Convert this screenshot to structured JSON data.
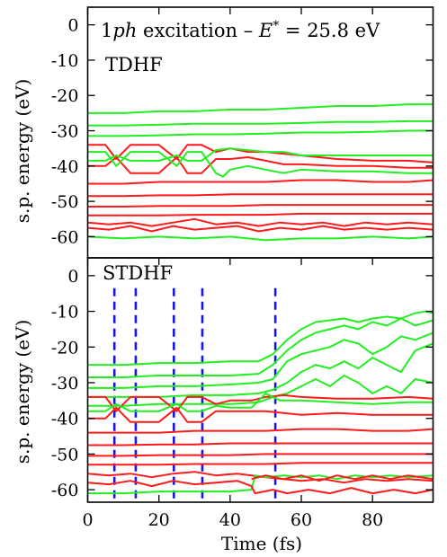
{
  "colors": {
    "occupied": "#ff1a1a",
    "unoccupied": "#22ee22",
    "markers": "#1515e6",
    "axis": "#000000"
  },
  "chart_data": [
    {
      "type": "line",
      "panel": "top",
      "title_math": "1ph excitation – E* = 25.8 eV",
      "label": "TDHF",
      "ylabel": "s.p. energy (eV)",
      "xlim": [
        0,
        97
      ],
      "ylim": [
        -66,
        5
      ],
      "yticks": [
        "0",
        "-10",
        "-20",
        "-30",
        "-40",
        "-50",
        "-60"
      ],
      "ytick_values": [
        0,
        -10,
        -20,
        -30,
        -40,
        -50,
        -60
      ],
      "grid": false,
      "series": [
        {
          "color": "green",
          "x": [
            0,
            10,
            20,
            30,
            40,
            50,
            60,
            70,
            80,
            90,
            97
          ],
          "y": [
            -25,
            -25,
            -24.5,
            -24.5,
            -24,
            -24,
            -23.5,
            -23,
            -23,
            -22.5,
            -22.5
          ]
        },
        {
          "color": "green",
          "x": [
            0,
            10,
            20,
            30,
            40,
            50,
            60,
            70,
            80,
            90,
            97
          ],
          "y": [
            -28.5,
            -28.5,
            -28.3,
            -28,
            -28,
            -28,
            -27.8,
            -27.5,
            -27.5,
            -27.3,
            -27.3
          ]
        },
        {
          "color": "green",
          "x": [
            0,
            10,
            20,
            30,
            40,
            50,
            60,
            70,
            80,
            90,
            97
          ],
          "y": [
            -31.5,
            -31.5,
            -31.3,
            -31,
            -31,
            -30.8,
            -30.5,
            -30.5,
            -30.3,
            -30,
            -30
          ]
        },
        {
          "color": "red",
          "x": [
            0,
            5,
            8,
            12,
            20,
            25,
            28,
            32,
            36,
            40,
            45,
            50,
            55,
            60,
            70,
            80,
            90,
            97
          ],
          "y": [
            -34,
            -34,
            -38,
            -34,
            -34,
            -38,
            -34,
            -34,
            -36,
            -35,
            -36,
            -36,
            -36.5,
            -37,
            -38,
            -38.5,
            -38.5,
            -39
          ]
        },
        {
          "color": "green",
          "x": [
            0,
            5,
            8,
            12,
            20,
            25,
            28,
            32,
            36,
            40,
            45,
            50,
            55,
            60,
            70,
            80,
            90,
            97
          ],
          "y": [
            -38.5,
            -38.5,
            -37,
            -38.5,
            -38.5,
            -37,
            -38.5,
            -38.5,
            -35.5,
            -35,
            -35.5,
            -36,
            -36,
            -37,
            -37,
            -37,
            -37,
            -37
          ]
        },
        {
          "color": "red",
          "x": [
            0,
            5,
            8,
            12,
            20,
            25,
            28,
            32,
            36,
            40,
            45,
            50,
            55,
            60,
            70,
            80,
            90,
            97
          ],
          "y": [
            -40,
            -40,
            -37.5,
            -42,
            -42,
            -37.5,
            -42,
            -42,
            -38,
            -38,
            -37.5,
            -38.5,
            -39.5,
            -39.5,
            -40,
            -40,
            -40.5,
            -40.5
          ]
        },
        {
          "color": "green",
          "x": [
            0,
            5,
            8,
            12,
            20,
            25,
            28,
            32,
            36,
            38,
            40,
            45,
            50,
            55,
            60,
            70,
            80,
            90,
            97
          ],
          "y": [
            -36,
            -36,
            -40,
            -36,
            -36,
            -40,
            -36,
            -36,
            -42,
            -43,
            -41,
            -40,
            -41,
            -42,
            -41,
            -41.5,
            -41.5,
            -42,
            -42
          ]
        },
        {
          "color": "red",
          "x": [
            0,
            10,
            20,
            30,
            40,
            50,
            60,
            70,
            80,
            90,
            97
          ],
          "y": [
            -45,
            -45,
            -44.5,
            -44.5,
            -44.5,
            -44.5,
            -44,
            -44,
            -44.5,
            -44.5,
            -44
          ]
        },
        {
          "color": "red",
          "x": [
            0,
            10,
            20,
            30,
            40,
            50,
            60,
            70,
            80,
            90,
            97
          ],
          "y": [
            -48.5,
            -48.5,
            -48.3,
            -48.3,
            -48,
            -48,
            -48,
            -48,
            -48,
            -48,
            -48
          ]
        },
        {
          "color": "red",
          "x": [
            0,
            10,
            20,
            30,
            40,
            50,
            60,
            70,
            80,
            90,
            97
          ],
          "y": [
            -51.5,
            -51.5,
            -51.3,
            -51.3,
            -51.3,
            -51,
            -51,
            -51,
            -51,
            -51,
            -51
          ]
        },
        {
          "color": "red",
          "x": [
            0,
            10,
            20,
            30,
            40,
            50,
            60,
            70,
            80,
            90,
            97
          ],
          "y": [
            -54,
            -54,
            -54,
            -53.8,
            -53.8,
            -53.8,
            -53.5,
            -53.5,
            -53.5,
            -53.5,
            -53.5
          ]
        },
        {
          "color": "red",
          "x": [
            0,
            6,
            12,
            18,
            24,
            30,
            36,
            42,
            48,
            54,
            60,
            66,
            72,
            78,
            84,
            90,
            97
          ],
          "y": [
            -56,
            -56.5,
            -56,
            -57,
            -56,
            -55,
            -56.5,
            -56,
            -57,
            -56,
            -56.5,
            -56,
            -57,
            -56,
            -56.5,
            -56,
            -56.5
          ]
        },
        {
          "color": "red",
          "x": [
            0,
            6,
            12,
            18,
            24,
            30,
            36,
            42,
            48,
            54,
            60,
            66,
            72,
            78,
            84,
            90,
            97
          ],
          "y": [
            -57.5,
            -58,
            -57,
            -58.5,
            -57,
            -58,
            -57.5,
            -57,
            -58.5,
            -57.5,
            -58,
            -57,
            -58,
            -57.5,
            -58,
            -57.5,
            -58
          ]
        },
        {
          "color": "green",
          "x": [
            0,
            10,
            20,
            30,
            40,
            50,
            60,
            70,
            80,
            90,
            97
          ],
          "y": [
            -60,
            -60.5,
            -60,
            -60.5,
            -60,
            -61,
            -60.5,
            -60.5,
            -60,
            -60.5,
            -60
          ]
        }
      ]
    },
    {
      "type": "line",
      "panel": "bottom",
      "label": "STDHF",
      "ylabel": "s.p. energy (eV)",
      "xlabel": "Time (fs)",
      "xlim": [
        0,
        97
      ],
      "ylim": [
        -63.5,
        5
      ],
      "xticks": [
        "0",
        "20",
        "40",
        "60",
        "80"
      ],
      "xtick_values": [
        0,
        20,
        40,
        60,
        80
      ],
      "yticks": [
        "0",
        "-10",
        "-20",
        "-30",
        "-40",
        "-50",
        "-60"
      ],
      "ytick_values": [
        0,
        -10,
        -20,
        -30,
        -40,
        -50,
        -60
      ],
      "grid": false,
      "markers_x": [
        7.5,
        13.5,
        24.2,
        32.2,
        52.7
      ],
      "series": [
        {
          "color": "green",
          "x": [
            0,
            10,
            20,
            30,
            40,
            48,
            52,
            56,
            60,
            64,
            68,
            72,
            76,
            80,
            84,
            88,
            92,
            95,
            97
          ],
          "y": [
            -25,
            -25,
            -24.5,
            -24.5,
            -24,
            -24,
            -22,
            -18,
            -15,
            -13,
            -12.5,
            -12,
            -13,
            -12,
            -11.5,
            -12,
            -10.5,
            -10,
            -10.5
          ]
        },
        {
          "color": "green",
          "x": [
            0,
            10,
            20,
            30,
            40,
            48,
            52,
            56,
            60,
            64,
            68,
            72,
            76,
            80,
            84,
            88,
            92,
            97
          ],
          "y": [
            -28.5,
            -28.5,
            -28,
            -28,
            -28,
            -27.5,
            -25,
            -21,
            -18,
            -16,
            -15,
            -14,
            -15,
            -13,
            -14,
            -12,
            -14,
            -12.5
          ]
        },
        {
          "color": "green",
          "x": [
            0,
            10,
            20,
            30,
            40,
            48,
            52,
            56,
            60,
            64,
            68,
            72,
            76,
            80,
            84,
            88,
            92,
            97
          ],
          "y": [
            -31.5,
            -31.5,
            -31,
            -31,
            -30.5,
            -30,
            -29,
            -24,
            -22,
            -21,
            -20,
            -18,
            -19,
            -22,
            -20,
            -17,
            -18,
            -16
          ]
        },
        {
          "color": "green",
          "x": [
            0,
            10,
            20,
            30,
            40,
            48,
            52,
            56,
            60,
            64,
            68,
            72,
            76,
            80,
            84,
            88,
            92,
            97
          ],
          "y": [
            -34,
            -34,
            -34,
            -33.5,
            -33.5,
            -33,
            -32,
            -30,
            -27,
            -25,
            -26,
            -24,
            -26,
            -23,
            -25,
            -27,
            -21,
            -19
          ]
        },
        {
          "color": "green",
          "x": [
            0,
            10,
            20,
            30,
            40,
            48,
            52,
            56,
            60,
            64,
            68,
            72,
            76,
            80,
            84,
            88,
            92,
            97
          ],
          "y": [
            -36.5,
            -36.5,
            -36,
            -36,
            -36,
            -35.5,
            -34,
            -33,
            -31,
            -29,
            -31,
            -28,
            -30,
            -33,
            -31,
            -33,
            -29,
            -30
          ]
        },
        {
          "color": "red",
          "x": [
            0,
            5,
            8,
            12,
            20,
            25,
            28,
            32,
            36,
            40,
            46,
            50,
            55,
            60,
            70,
            80,
            90,
            97
          ],
          "y": [
            -34,
            -34,
            -38,
            -34,
            -34,
            -38,
            -34,
            -34,
            -36,
            -35,
            -35,
            -34,
            -33.5,
            -34,
            -34.5,
            -34.5,
            -34,
            -34.5
          ]
        },
        {
          "color": "green",
          "x": [
            0,
            5,
            8,
            12,
            20,
            25,
            28,
            32,
            36,
            40,
            46,
            50,
            54,
            60,
            70,
            80,
            90,
            97
          ],
          "y": [
            -38,
            -38,
            -36,
            -38,
            -38,
            -36,
            -38,
            -38,
            -36.5,
            -37,
            -37,
            -33,
            -35,
            -35,
            -35.5,
            -36,
            -35.5,
            -35.5
          ]
        },
        {
          "color": "red",
          "x": [
            0,
            5,
            8,
            12,
            20,
            25,
            28,
            32,
            36,
            40,
            46,
            50,
            55,
            60,
            70,
            80,
            90,
            97
          ],
          "y": [
            -40,
            -40,
            -37,
            -41,
            -41,
            -37,
            -41,
            -41,
            -38,
            -38,
            -38,
            -38,
            -38.5,
            -39,
            -38.5,
            -39,
            -39,
            -39
          ]
        },
        {
          "color": "red",
          "x": [
            0,
            10,
            20,
            30,
            40,
            50,
            60,
            70,
            80,
            90,
            97
          ],
          "y": [
            -44,
            -44,
            -44,
            -43.5,
            -43.5,
            -43.5,
            -43,
            -43,
            -43.5,
            -43.5,
            -43
          ]
        },
        {
          "color": "red",
          "x": [
            0,
            10,
            20,
            30,
            40,
            50,
            60,
            70,
            80,
            90,
            97
          ],
          "y": [
            -47.5,
            -47.5,
            -47.3,
            -47.3,
            -47,
            -47,
            -47,
            -47,
            -47,
            -47,
            -47
          ]
        },
        {
          "color": "red",
          "x": [
            0,
            10,
            20,
            30,
            40,
            50,
            60,
            70,
            80,
            90,
            97
          ],
          "y": [
            -50.5,
            -50.5,
            -50.3,
            -50.3,
            -50.3,
            -50,
            -50,
            -50,
            -50,
            -50,
            -50
          ]
        },
        {
          "color": "red",
          "x": [
            0,
            10,
            20,
            30,
            40,
            50,
            60,
            70,
            80,
            90,
            97
          ],
          "y": [
            -53,
            -53,
            -53,
            -52.8,
            -52.8,
            -52.8,
            -52.5,
            -52.5,
            -52.5,
            -52.5,
            -52.5
          ]
        },
        {
          "color": "red",
          "x": [
            0,
            6,
            12,
            18,
            24,
            30,
            36,
            42,
            46,
            50,
            55,
            60,
            66,
            72,
            78,
            84,
            90,
            97
          ],
          "y": [
            -55.5,
            -56,
            -55.5,
            -56.5,
            -55.5,
            -55,
            -56,
            -55.5,
            -56,
            -56.5,
            -57,
            -57.5,
            -57,
            -58,
            -57,
            -57.5,
            -57,
            -57.5
          ]
        },
        {
          "color": "green",
          "x": [
            0,
            10,
            20,
            30,
            40,
            46,
            47,
            50,
            55,
            60,
            65,
            70,
            75,
            80,
            85,
            90,
            97
          ],
          "y": [
            -61,
            -61,
            -60.5,
            -60.5,
            -60.5,
            -60,
            -56,
            -56.5,
            -56,
            -56.5,
            -56,
            -57,
            -56,
            -56.5,
            -56,
            -56.5,
            -56
          ]
        },
        {
          "color": "red",
          "x": [
            0,
            6,
            12,
            18,
            24,
            30,
            36,
            42,
            46,
            47,
            52,
            56,
            62,
            68,
            74,
            80,
            86,
            92,
            97
          ],
          "y": [
            -58,
            -58.5,
            -57.5,
            -59,
            -57.5,
            -58.5,
            -58,
            -57.5,
            -59,
            -61,
            -60,
            -61,
            -60,
            -61,
            -59.5,
            -61,
            -60,
            -61,
            -60
          ]
        },
        {
          "color": "red",
          "x": [
            46,
            50,
            55,
            60,
            65,
            70,
            75,
            80,
            85,
            90,
            97
          ],
          "y": [
            -57,
            -56,
            -57,
            -56,
            -57.5,
            -56,
            -57,
            -56,
            -57,
            -56,
            -57
          ]
        }
      ]
    }
  ],
  "xaxis": {
    "label": "Time (fs)"
  }
}
